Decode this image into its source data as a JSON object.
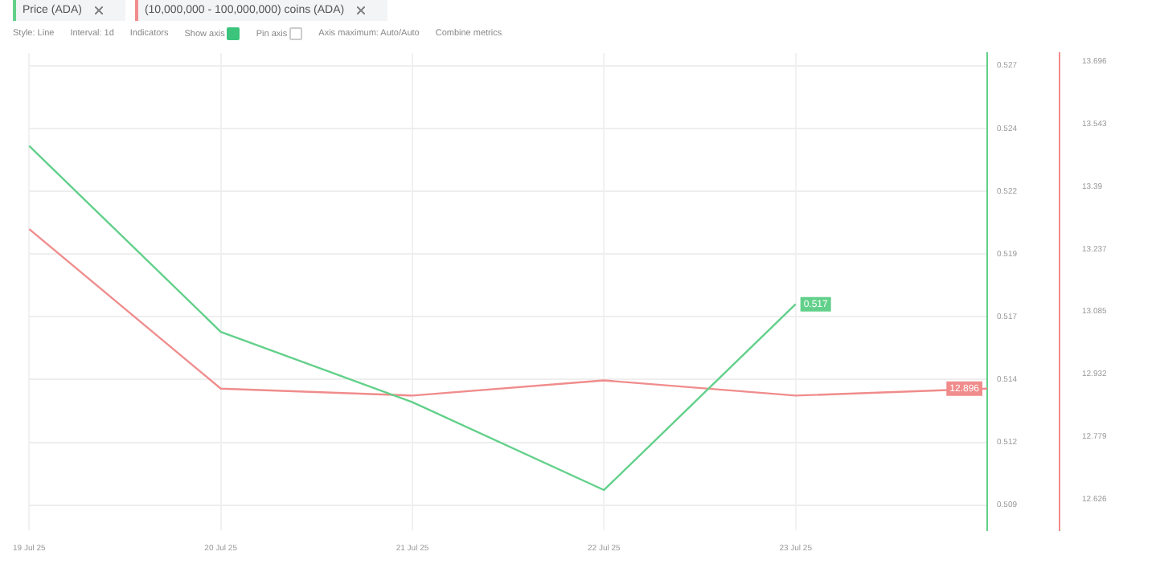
{
  "chart_data": {
    "type": "line",
    "categories": [
      "19 Jul 25",
      "20 Jul 25",
      "21 Jul 25",
      "22 Jul 25",
      "23 Jul 25",
      null
    ],
    "series": [
      {
        "name": "Price (ADA)",
        "color": "#62d08a",
        "values": [
          0.5233,
          0.5159,
          0.5131,
          0.5096,
          0.517,
          null
        ],
        "value_labels": [
          null,
          null,
          null,
          null,
          "0.517",
          null
        ]
      },
      {
        "name": "(10,000,000 - 100,000,000) coins (ADA)",
        "color": "#f08c8c",
        "axis": "y2",
        "values": [
          13.286,
          12.896,
          12.879,
          12.916,
          12.879,
          12.896
        ],
        "value_labels": [
          null,
          null,
          null,
          null,
          null,
          "12.896"
        ]
      }
    ],
    "ylim": [
      0.508,
      0.527
    ],
    "yticks": [
      {
        "value": 0.5265,
        "label": "0.527"
      },
      {
        "value": 0.524,
        "label": "0.524"
      },
      {
        "value": 0.5215,
        "label": "0.522"
      },
      {
        "value": 0.519,
        "label": "0.519"
      },
      {
        "value": 0.5165,
        "label": "0.517"
      },
      {
        "value": 0.514,
        "label": "0.514"
      },
      {
        "value": 0.5115,
        "label": "0.512"
      },
      {
        "value": 0.509,
        "label": "0.509"
      }
    ],
    "y2lim": [
      12.55,
      13.716
    ],
    "y2ticks": [
      13.696,
      13.543,
      13.39,
      13.237,
      13.085,
      12.932,
      12.779,
      12.626
    ],
    "grid": true,
    "legend": "top left",
    "marker": "none",
    "line_style": "solid",
    "annotations": [
      "Style: Line",
      "Interval: 1d",
      "Indicators",
      "Show axis",
      "Pin axis",
      "Axis maximum: Auto/Auto",
      "Combine metrics"
    ]
  }
}
